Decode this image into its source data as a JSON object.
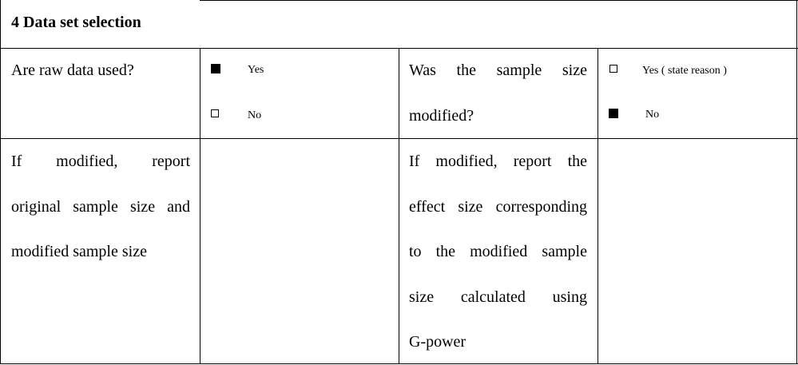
{
  "section": {
    "title": "4 Data set selection"
  },
  "row1": {
    "question_left": "Are raw data used?",
    "raw_yes_label": "Yes",
    "raw_no_label": "No",
    "raw_yes_checked": true,
    "raw_no_checked": false,
    "question_right_line1": "Was the sample size",
    "question_right_line2": "modified?",
    "mod_yes_label": "Yes ( state reason )",
    "mod_no_label": "No",
    "mod_yes_checked": false,
    "mod_no_checked": true
  },
  "row2": {
    "left_lines": [
      "If modified, report",
      "original sample size and",
      "modified sample size"
    ],
    "right_lines": [
      "If modified, report the",
      "effect size corresponding",
      "to the modified sample",
      "size calculated using",
      "G-power"
    ]
  }
}
